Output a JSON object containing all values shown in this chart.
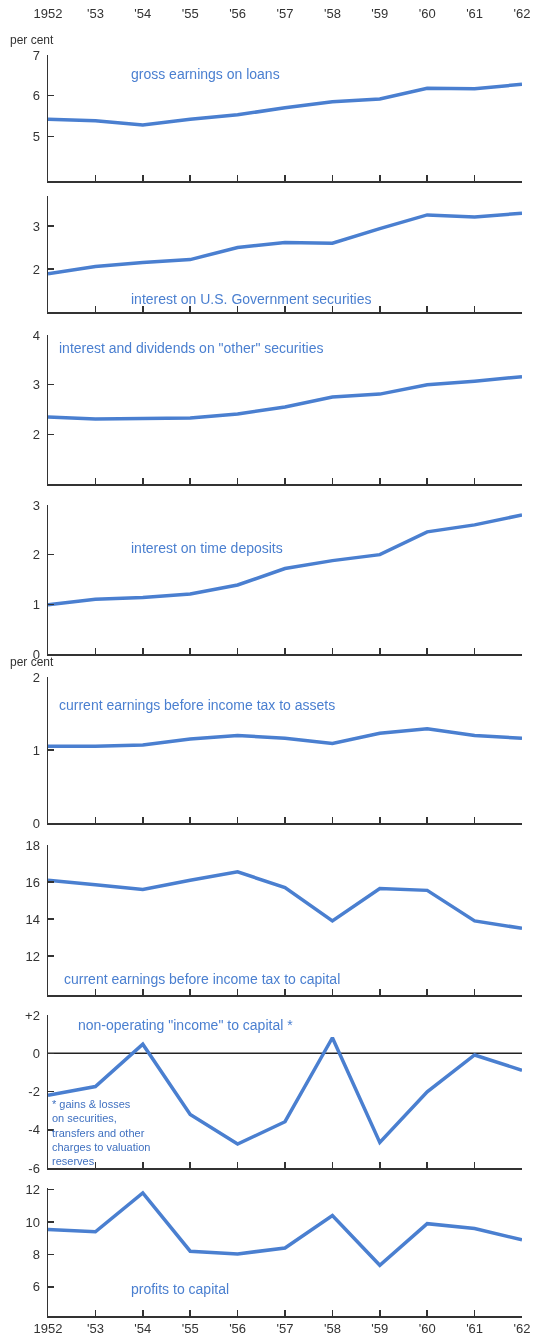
{
  "chart_data": [
    {
      "type": "line",
      "x": [
        1952,
        1953,
        1954,
        1955,
        1956,
        1957,
        1958,
        1959,
        1960,
        1961,
        1962
      ],
      "ylabel": "per cent",
      "series": [
        {
          "name": "gross earnings on loans",
          "color": "#4a7fd0",
          "values": [
            5.42,
            5.38,
            5.28,
            5.42,
            5.53,
            5.7,
            5.85,
            5.92,
            6.18,
            6.17,
            6.28
          ]
        }
      ],
      "xlim": [
        1952,
        1962
      ],
      "xticks": [
        1952,
        {
          "value": 1953,
          "label": "'53"
        },
        {
          "value": 1954,
          "label": "'54"
        },
        {
          "value": 1955,
          "label": "'55"
        },
        {
          "value": 1956,
          "label": "'56"
        },
        {
          "value": 1957,
          "label": "'57"
        },
        {
          "value": 1958,
          "label": "'58"
        },
        {
          "value": 1959,
          "label": "'59"
        },
        {
          "value": 1960,
          "label": "'60"
        },
        {
          "value": 1961,
          "label": "'61"
        },
        {
          "value": 1962,
          "label": "'62"
        }
      ],
      "ylim": [
        3.9,
        7
      ],
      "yticks": [
        5,
        6,
        7
      ]
    },
    {
      "type": "line",
      "x": [
        1952,
        1953,
        1954,
        1955,
        1956,
        1957,
        1958,
        1959,
        1960,
        1961,
        1962
      ],
      "series": [
        {
          "name": "interest on U.S. Government securities",
          "color": "#4a7fd0",
          "values": [
            1.89,
            2.06,
            2.15,
            2.22,
            2.5,
            2.62,
            2.6,
            2.94,
            3.26,
            3.21,
            3.3
          ]
        }
      ],
      "xlim": [
        1952,
        1962
      ],
      "xticks": [
        {
          "value": 1952,
          "label": null
        },
        {
          "value": 1953,
          "label": null
        },
        {
          "value": 1954,
          "label": null
        },
        {
          "value": 1955,
          "label": null
        },
        {
          "value": 1956,
          "label": null
        },
        {
          "value": 1957,
          "label": null
        },
        {
          "value": 1958,
          "label": null
        },
        {
          "value": 1959,
          "label": null
        },
        {
          "value": 1960,
          "label": null
        },
        {
          "value": 1961,
          "label": null
        },
        {
          "value": 1962,
          "label": null
        }
      ],
      "ylim": [
        1,
        3.7
      ],
      "yticks": [
        2,
        3
      ],
      "tick_labels": "y"
    },
    {
      "type": "line",
      "x": [
        1952,
        1953,
        1954,
        1955,
        1956,
        1957,
        1958,
        1959,
        1960,
        1961,
        1962
      ],
      "series": [
        {
          "name": "interest and dividends on \"other\" securities",
          "color": "#4a7fd0",
          "values": [
            2.35,
            2.31,
            2.32,
            2.33,
            2.41,
            2.55,
            2.75,
            2.81,
            3.0,
            3.07,
            3.16
          ]
        }
      ],
      "xlim": [
        1952,
        1962
      ],
      "xticks": [
        {
          "value": 1952,
          "label": null
        },
        {
          "value": 1953,
          "label": null
        },
        {
          "value": 1954,
          "label": null
        },
        {
          "value": 1955,
          "label": null
        },
        {
          "value": 1956,
          "label": null
        },
        {
          "value": 1957,
          "label": null
        },
        {
          "value": 1958,
          "label": null
        },
        {
          "value": 1959,
          "label": null
        },
        {
          "value": 1960,
          "label": null
        },
        {
          "value": 1961,
          "label": null
        },
        {
          "value": 1962,
          "label": null
        }
      ],
      "ylim": [
        1,
        4
      ],
      "yticks": [
        2,
        3,
        4
      ],
      "tick_labels": "y"
    },
    {
      "type": "line",
      "x": [
        1952,
        1953,
        1954,
        1955,
        1956,
        1957,
        1958,
        1959,
        1960,
        1961,
        1962
      ],
      "series": [
        {
          "name": "interest on time deposits",
          "color": "#4a7fd0",
          "values": [
            0.99,
            1.1,
            1.14,
            1.21,
            1.39,
            1.72,
            1.88,
            2.0,
            2.46,
            2.6,
            2.8
          ]
        }
      ],
      "xlim": [
        1952,
        1962
      ],
      "xticks": [
        {
          "value": 1952,
          "label": null
        },
        {
          "value": 1953,
          "label": null
        },
        {
          "value": 1954,
          "label": null
        },
        {
          "value": 1955,
          "label": null
        },
        {
          "value": 1956,
          "label": null
        },
        {
          "value": 1957,
          "label": null
        },
        {
          "value": 1958,
          "label": null
        },
        {
          "value": 1959,
          "label": null
        },
        {
          "value": 1960,
          "label": null
        },
        {
          "value": 1961,
          "label": null
        },
        {
          "value": 1962,
          "label": null
        }
      ],
      "ylim": [
        0,
        3
      ],
      "yticks": [
        0,
        1,
        2,
        3
      ],
      "tick_labels": "y"
    },
    {
      "type": "line",
      "x": [
        1952,
        1953,
        1954,
        1955,
        1956,
        1957,
        1958,
        1959,
        1960,
        1961,
        1962
      ],
      "ylabel": "per cent",
      "series": [
        {
          "name": "current earnings before income tax to assets",
          "color": "#4a7fd0",
          "values": [
            1.05,
            1.05,
            1.07,
            1.15,
            1.2,
            1.16,
            1.09,
            1.23,
            1.29,
            1.2,
            1.16
          ]
        }
      ],
      "xlim": [
        1952,
        1962
      ],
      "xticks": [
        {
          "value": 1952,
          "label": null
        },
        {
          "value": 1953,
          "label": null
        },
        {
          "value": 1954,
          "label": null
        },
        {
          "value": 1955,
          "label": null
        },
        {
          "value": 1956,
          "label": null
        },
        {
          "value": 1957,
          "label": null
        },
        {
          "value": 1958,
          "label": null
        },
        {
          "value": 1959,
          "label": null
        },
        {
          "value": 1960,
          "label": null
        },
        {
          "value": 1961,
          "label": null
        },
        {
          "value": 1962,
          "label": null
        }
      ],
      "ylim": [
        0,
        2
      ],
      "yticks": [
        0,
        1,
        2
      ],
      "tick_labels": "y"
    },
    {
      "type": "line",
      "x": [
        1952,
        1953,
        1954,
        1955,
        1956,
        1957,
        1958,
        1959,
        1960,
        1961,
        1962
      ],
      "series": [
        {
          "name": "current earnings before income tax to capital",
          "color": "#4a7fd0",
          "values": [
            16.1,
            15.85,
            15.6,
            16.1,
            16.55,
            15.7,
            13.9,
            15.65,
            15.55,
            13.9,
            13.5
          ]
        }
      ],
      "xlim": [
        1952,
        1962
      ],
      "xticks": [
        {
          "value": 1952,
          "label": null
        },
        {
          "value": 1953,
          "label": null
        },
        {
          "value": 1954,
          "label": null
        },
        {
          "value": 1955,
          "label": null
        },
        {
          "value": 1956,
          "label": null
        },
        {
          "value": 1957,
          "label": null
        },
        {
          "value": 1958,
          "label": null
        },
        {
          "value": 1959,
          "label": null
        },
        {
          "value": 1960,
          "label": null
        },
        {
          "value": 1961,
          "label": null
        },
        {
          "value": 1962,
          "label": null
        }
      ],
      "ylim": [
        9.9,
        18
      ],
      "yticks": [
        12,
        14,
        16,
        18
      ],
      "tick_labels": "y"
    },
    {
      "type": "line",
      "x": [
        1952,
        1953,
        1954,
        1955,
        1956,
        1957,
        1958,
        1959,
        1960,
        1961,
        1962
      ],
      "series": [
        {
          "name": "non-operating \"income\" to capital *",
          "color": "#4a7fd0",
          "values": [
            -2.2,
            -1.74,
            0.47,
            -3.2,
            -4.75,
            -3.58,
            0.81,
            -4.66,
            -2.02,
            -0.09,
            -0.89
          ]
        }
      ],
      "xlim": [
        1952,
        1962
      ],
      "xticks": [
        {
          "value": 1952,
          "label": null
        },
        {
          "value": 1953,
          "label": null
        },
        {
          "value": 1954,
          "label": null
        },
        {
          "value": 1955,
          "label": null
        },
        {
          "value": 1956,
          "label": null
        },
        {
          "value": 1957,
          "label": null
        },
        {
          "value": 1958,
          "label": null
        },
        {
          "value": 1959,
          "label": null
        },
        {
          "value": 1960,
          "label": null
        },
        {
          "value": 1961,
          "label": null
        },
        {
          "value": 1962,
          "label": null
        }
      ],
      "ylim": [
        -6,
        2
      ],
      "yticks": [
        {
          "value": 2,
          "label": "+2"
        },
        0,
        -2,
        -4,
        -6
      ],
      "tick_labels": "y",
      "ref_lines": [
        {
          "axis": "y",
          "value": 0,
          "color": "#222222"
        }
      ],
      "annotations": [
        "* gains & losses on securities, transfers and other charges to valuation reserves"
      ]
    },
    {
      "type": "line",
      "x": [
        1952,
        1953,
        1954,
        1955,
        1956,
        1957,
        1958,
        1959,
        1960,
        1961,
        1962
      ],
      "series": [
        {
          "name": "profits to capital",
          "color": "#4a7fd0",
          "values": [
            9.54,
            9.4,
            11.8,
            8.2,
            8.03,
            8.4,
            10.4,
            7.33,
            9.9,
            9.6,
            8.9
          ]
        }
      ],
      "xlim": [
        1952,
        1962
      ],
      "xticks": [
        1952,
        {
          "value": 1953,
          "label": "'53"
        },
        {
          "value": 1954,
          "label": "'54"
        },
        {
          "value": 1955,
          "label": "'55"
        },
        {
          "value": 1956,
          "label": "'56"
        },
        {
          "value": 1957,
          "label": "'57"
        },
        {
          "value": 1958,
          "label": "'58"
        },
        {
          "value": 1959,
          "label": "'59"
        },
        {
          "value": 1960,
          "label": "'60"
        },
        {
          "value": 1961,
          "label": "'61"
        },
        {
          "value": 1962,
          "label": "'62"
        }
      ],
      "ylim": [
        4.2,
        12.1
      ],
      "yticks": [
        6,
        8,
        10,
        12
      ]
    }
  ]
}
